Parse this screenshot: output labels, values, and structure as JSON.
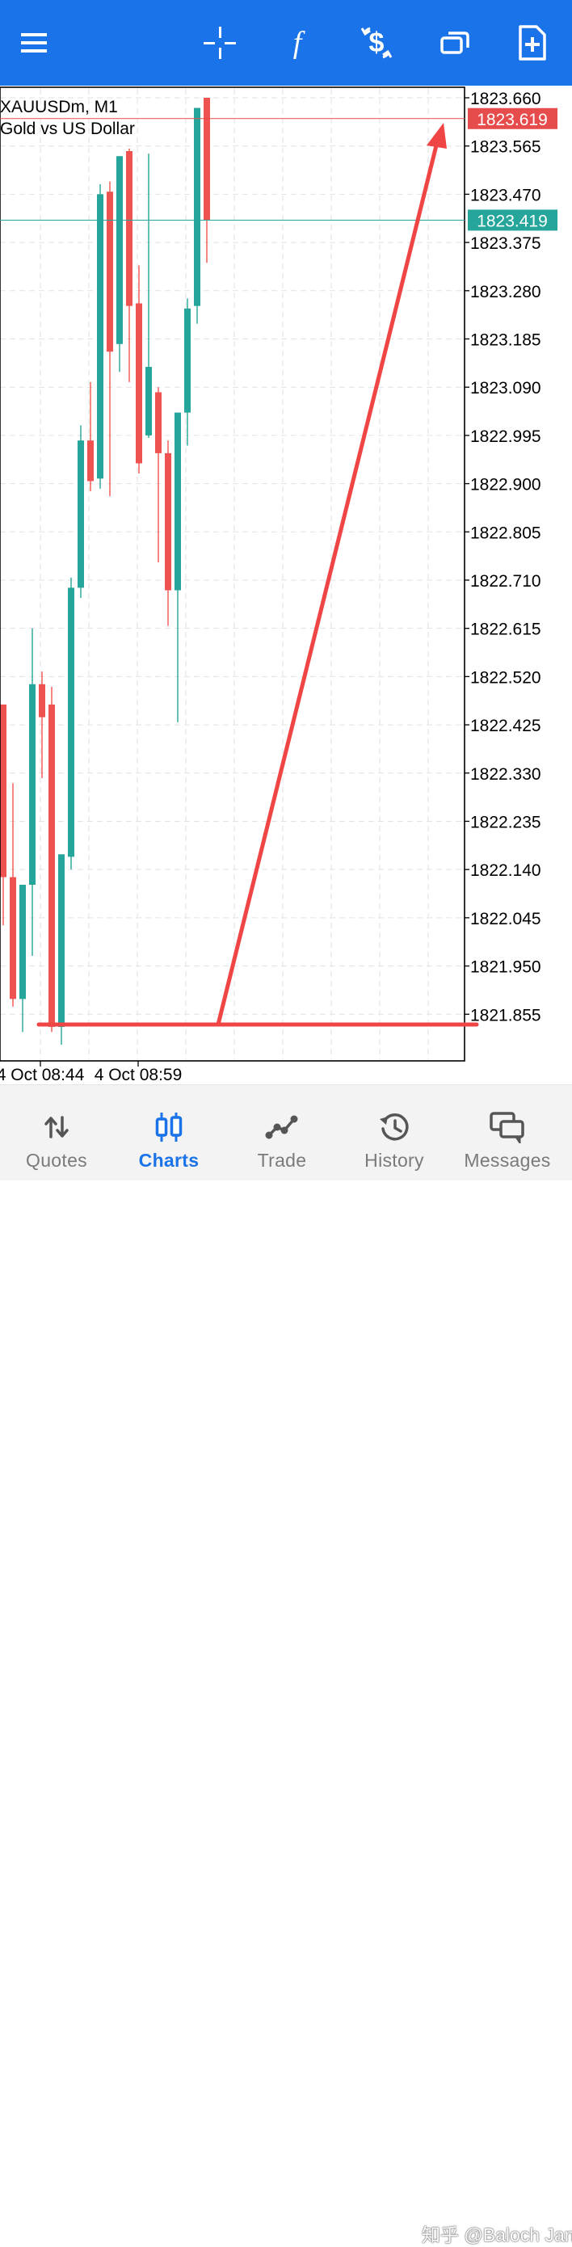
{
  "toolbar": {
    "icons": [
      "menu-icon",
      "crosshair-icon",
      "function-icon",
      "trade-dollar-icon",
      "windows-icon",
      "new-document-icon"
    ],
    "function_glyph": "f",
    "color": "#1a73e8"
  },
  "chart": {
    "symbol": "XAUUSDm, M1",
    "description": "Gold vs US Dollar",
    "ask_price": "1823.619",
    "bid_price": "1823.419",
    "ask_color": "#e74c4c",
    "bid_color": "#26a69a",
    "bull_color": "#26a69a",
    "bear_color": "#ef5350",
    "time_labels": [
      "4 Oct 08:44",
      "4 Oct 08:59"
    ]
  },
  "chart_data": {
    "type": "candlestick",
    "ylim": [
      1821.76,
      1823.68
    ],
    "yticks": [
      "1823.660",
      "1823.565",
      "1823.470",
      "1823.375",
      "1823.280",
      "1823.185",
      "1823.090",
      "1822.995",
      "1822.900",
      "1822.805",
      "1822.710",
      "1822.615",
      "1822.520",
      "1822.425",
      "1822.330",
      "1822.235",
      "1822.140",
      "1822.045",
      "1821.950",
      "1821.855"
    ],
    "candles": [
      {
        "open": 1822.465,
        "close": 1822.125,
        "high": 1822.465,
        "low": 1822.03
      },
      {
        "open": 1822.125,
        "close": 1821.885,
        "high": 1822.31,
        "low": 1821.87
      },
      {
        "open": 1821.885,
        "close": 1822.11,
        "high": 1822.11,
        "low": 1821.82
      },
      {
        "open": 1822.11,
        "close": 1822.505,
        "high": 1822.615,
        "low": 1821.97
      },
      {
        "open": 1822.505,
        "close": 1822.44,
        "high": 1822.53,
        "low": 1822.32
      },
      {
        "open": 1822.465,
        "close": 1821.83,
        "high": 1822.5,
        "low": 1821.82
      },
      {
        "open": 1821.83,
        "close": 1822.17,
        "high": 1822.17,
        "low": 1821.795
      },
      {
        "open": 1822.165,
        "close": 1822.695,
        "high": 1822.715,
        "low": 1822.14
      },
      {
        "open": 1822.695,
        "close": 1822.985,
        "high": 1823.015,
        "low": 1822.675
      },
      {
        "open": 1822.985,
        "close": 1822.905,
        "high": 1823.1,
        "low": 1822.885
      },
      {
        "open": 1822.91,
        "close": 1823.47,
        "high": 1823.49,
        "low": 1822.89
      },
      {
        "open": 1823.475,
        "close": 1823.16,
        "high": 1823.495,
        "low": 1822.875
      },
      {
        "open": 1823.175,
        "close": 1823.545,
        "high": 1823.545,
        "low": 1823.12
      },
      {
        "open": 1823.555,
        "close": 1823.25,
        "high": 1823.56,
        "low": 1823.1
      },
      {
        "open": 1823.255,
        "close": 1822.94,
        "high": 1823.33,
        "low": 1822.92
      },
      {
        "open": 1822.995,
        "close": 1823.13,
        "high": 1823.55,
        "low": 1822.99
      },
      {
        "open": 1823.08,
        "close": 1822.96,
        "high": 1823.09,
        "low": 1822.745
      },
      {
        "open": 1822.96,
        "close": 1822.69,
        "high": 1822.985,
        "low": 1822.62
      },
      {
        "open": 1822.69,
        "close": 1823.04,
        "high": 1823.04,
        "low": 1822.43
      },
      {
        "open": 1823.04,
        "close": 1823.245,
        "high": 1823.265,
        "low": 1822.975
      },
      {
        "open": 1823.25,
        "close": 1823.64,
        "high": 1823.64,
        "low": 1823.215
      },
      {
        "open": 1823.66,
        "close": 1823.419,
        "high": 1823.66,
        "low": 1823.335
      }
    ],
    "annotation": {
      "type": "drawn-arrow",
      "color": "#f04545"
    }
  },
  "nav": {
    "items": [
      {
        "label": "Quotes",
        "icon": "quotes-arrows-icon"
      },
      {
        "label": "Charts",
        "icon": "charts-candles-icon"
      },
      {
        "label": "Trade",
        "icon": "trade-line-icon"
      },
      {
        "label": "History",
        "icon": "history-clock-icon"
      },
      {
        "label": "Messages",
        "icon": "messages-icon"
      }
    ],
    "active_color": "#1a73e8",
    "inactive_color": "#7a7a7a"
  },
  "watermark": "知乎 @Baloch Jan"
}
